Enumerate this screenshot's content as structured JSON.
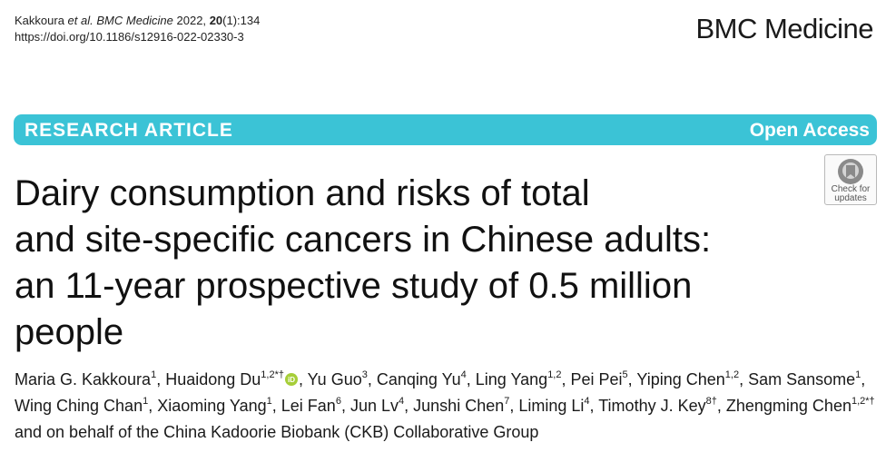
{
  "citation": {
    "authors": "Kakkoura",
    "etal": "et al.",
    "journal": "BMC Medicine",
    "year": "2022,",
    "volume": "20",
    "issue_pages": "(1):134",
    "doi": "https://doi.org/10.1186/s12916-022-02330-3"
  },
  "brand": "BMC Medicine",
  "banner": {
    "type": "RESEARCH ARTICLE",
    "access": "Open Access",
    "color": "#3bc3d6"
  },
  "check_updates": {
    "icon": "check-for-updates-icon",
    "line1": "Check for",
    "line2": "updates"
  },
  "title": {
    "line1": "Dairy consumption and risks of total",
    "line2": "and site-specific cancers in Chinese adults:",
    "line3": "an 11-year prospective study of 0.5 million",
    "line4": "people"
  },
  "authors": [
    {
      "name": "Maria G. Kakkoura",
      "sup": "1",
      "sep": ", "
    },
    {
      "name": "Huaidong Du",
      "sup": "1,2*†",
      "orcid": true,
      "sep": ", "
    },
    {
      "name": "Yu Guo",
      "sup": "3",
      "sep": ", "
    },
    {
      "name": "Canqing Yu",
      "sup": "4",
      "sep": ", "
    },
    {
      "name": "Ling Yang",
      "sup": "1,2",
      "sep": ", "
    },
    {
      "name": "Pei Pei",
      "sup": "5",
      "sep": ", "
    },
    {
      "name": "Yiping Chen",
      "sup": "1,2",
      "sep": ", "
    },
    {
      "name": "Sam Sansome",
      "sup": "1",
      "sep": ", "
    },
    {
      "name": "Wing Ching Chan",
      "sup": "1",
      "sep": ", "
    },
    {
      "name": "Xiaoming Yang",
      "sup": "1",
      "sep": ", "
    },
    {
      "name": "Lei Fan",
      "sup": "6",
      "sep": ", "
    },
    {
      "name": "Jun Lv",
      "sup": "4",
      "sep": ", "
    },
    {
      "name": "Junshi Chen",
      "sup": "7",
      "sep": ", "
    },
    {
      "name": "Liming Li",
      "sup": "4",
      "sep": ", "
    },
    {
      "name": "Timothy J. Key",
      "sup": "8†",
      "sep": ", "
    },
    {
      "name": "Zhengming Chen",
      "sup": "1,2*†",
      "sep": " "
    }
  ],
  "authors_tail": "and on behalf of the China Kadoorie Biobank (CKB) Collaborative Group",
  "orcid_icon": "orcid-icon",
  "orcid_color": "#a6ce39"
}
